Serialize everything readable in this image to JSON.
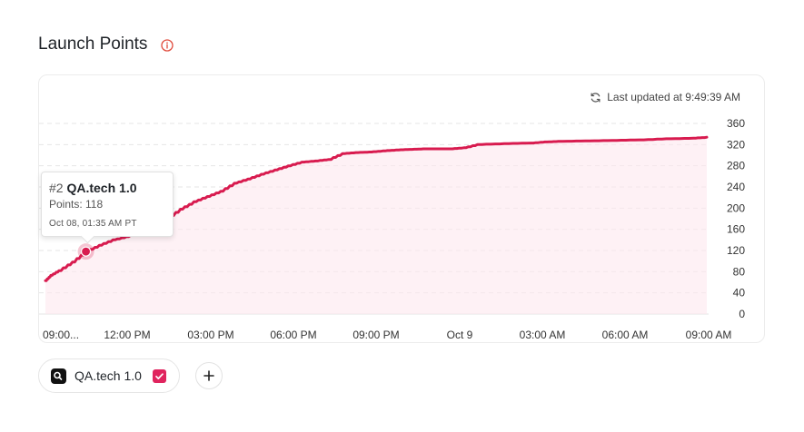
{
  "page": {
    "title": "Launch Points",
    "last_updated": "Last updated at 9:49:39 AM"
  },
  "tooltip": {
    "rank": "#2",
    "name": "QA.tech 1.0",
    "points_text": "Points: 118",
    "date": "Oct 08, 01:35 AM PT"
  },
  "chips": [
    {
      "label": "QA.tech 1.0",
      "checked": true
    }
  ],
  "add_button_label": "+",
  "colors": {
    "series": "#d81b4f",
    "fill": "#fde8ee",
    "check": "#e0245e"
  },
  "chart_data": {
    "type": "area",
    "title": "Launch Points",
    "ylim": [
      0,
      360
    ],
    "yticks": [
      "0",
      "40",
      "80",
      "120",
      "160",
      "200",
      "240",
      "280",
      "320",
      "360"
    ],
    "xtick_labels": [
      "09:00...",
      "12:00 PM",
      "03:00 PM",
      "06:00 PM",
      "09:00 PM",
      "Oct 9",
      "03:00 AM",
      "06:00 AM",
      "09:00 AM"
    ],
    "grid": true,
    "legend": "bottom",
    "series": [
      {
        "name": "QA.tech 1.0",
        "x_hours": [
          0,
          0.2,
          0.5,
          1.0,
          1.5,
          2.0,
          2.5,
          3.0,
          3.5,
          4.0,
          4.5,
          5.0,
          5.5,
          6.0,
          6.5,
          7.0,
          7.5,
          8.0,
          8.5,
          9.0,
          9.5,
          10.0,
          10.5,
          11.0,
          11.5,
          12.0,
          12.5,
          13.0,
          13.5,
          14.0,
          14.5,
          15.0,
          15.5,
          16.0,
          17.0,
          18.0,
          18.5,
          19.0,
          20.0,
          21.0,
          22.0,
          23.0,
          24.0,
          24.5
        ],
        "values": [
          63,
          73,
          82,
          98,
          118,
          130,
          140,
          146,
          155,
          165,
          180,
          198,
          212,
          222,
          232,
          247,
          255,
          264,
          272,
          280,
          287,
          289,
          292,
          303,
          305,
          306,
          308,
          310,
          311,
          312,
          312,
          312,
          314,
          320,
          322,
          323,
          325,
          326,
          327,
          328,
          329,
          331,
          332,
          334
        ]
      }
    ],
    "highlight": {
      "x_hours": 1.5,
      "value": 118
    }
  }
}
